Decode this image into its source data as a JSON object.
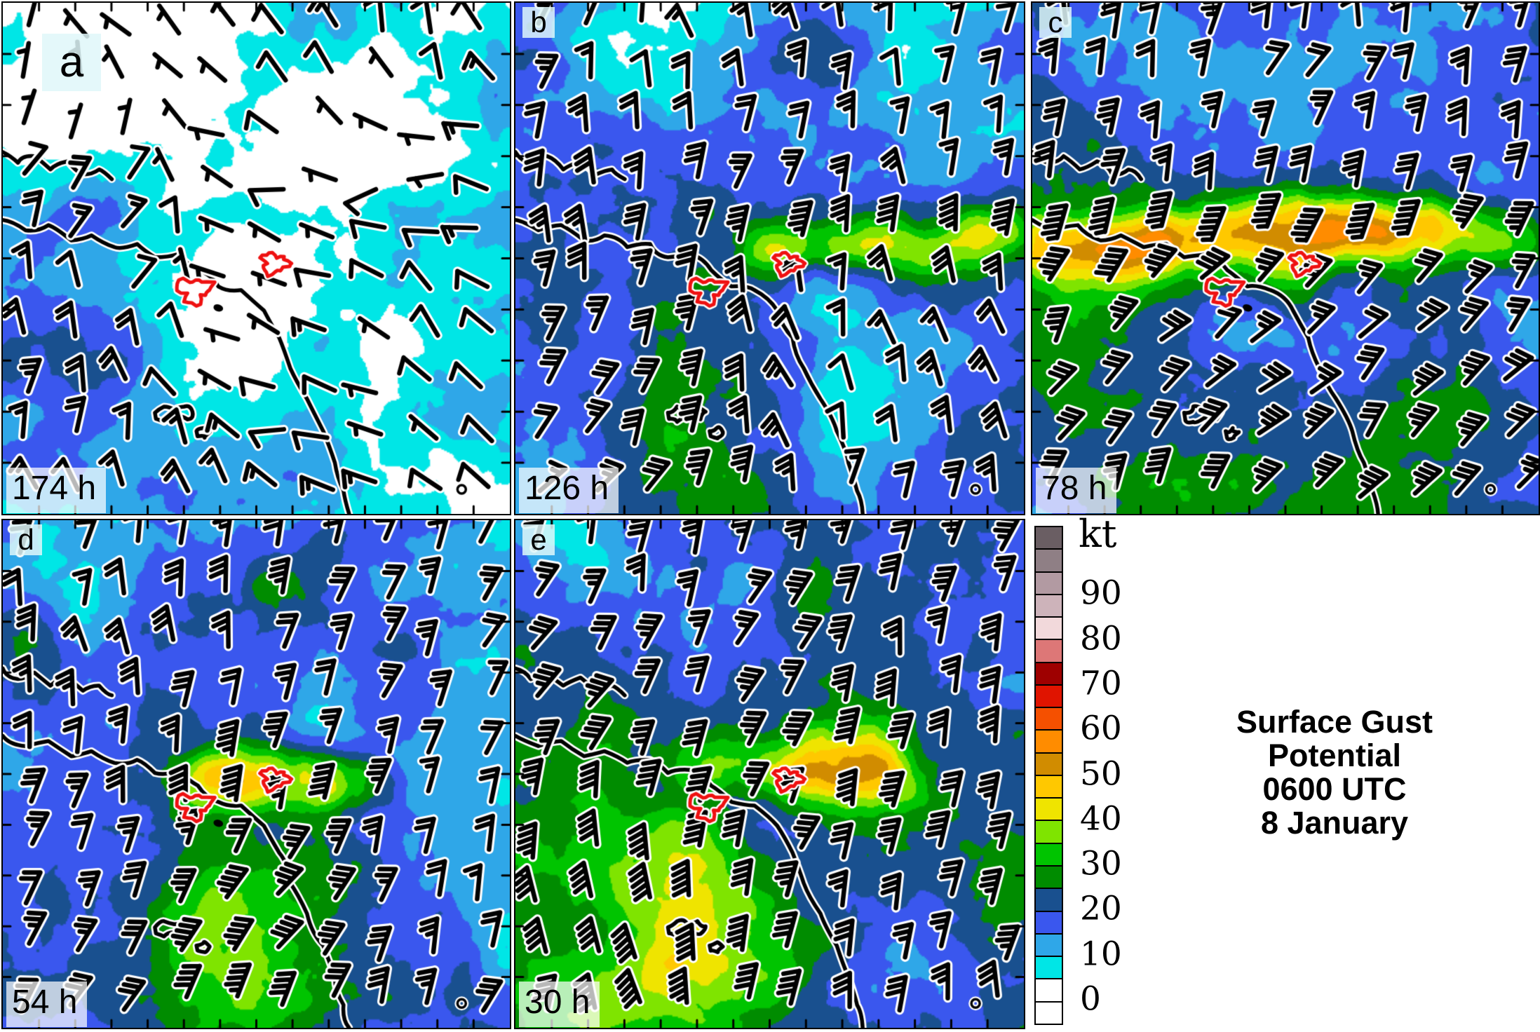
{
  "figure": {
    "background": "#FFFFFF"
  },
  "panels": [
    {
      "letter": "a",
      "lead_time": "174 h"
    },
    {
      "letter": "b",
      "lead_time": "126 h"
    },
    {
      "letter": "c",
      "lead_time": "78 h"
    },
    {
      "letter": "d",
      "lead_time": "54 h"
    },
    {
      "letter": "e",
      "lead_time": "30 h"
    }
  ],
  "legend": {
    "unit": "kt",
    "tick_labels": [
      "90",
      "80",
      "70",
      "60",
      "50",
      "40",
      "30",
      "20",
      "10",
      "0"
    ],
    "cell_colors_top_to_bottom": [
      "#6A5E63",
      "#8F7F85",
      "#B29AA2",
      "#CDB3BA",
      "#F2D9DB",
      "#DD7777",
      "#9E0000",
      "#E01400",
      "#F55000",
      "#FF8C00",
      "#D18C00",
      "#FFC800",
      "#EFE400",
      "#7FE400",
      "#00C400",
      "#008C00",
      "#19508F",
      "#3A57EE",
      "#2FA7E8",
      "#00E6E6",
      "#FFFFFF",
      "#FFFFFF"
    ],
    "title_lines": [
      "Surface Gust",
      "Potential",
      "0600 UTC",
      "8 January"
    ]
  },
  "map": {
    "palette_low_to_high": [
      "#FFFFFF",
      "#00E6E6",
      "#2FA7E8",
      "#3A57EE",
      "#19508F",
      "#008C00",
      "#00C400",
      "#7FE400",
      "#EFE400",
      "#FFC800",
      "#D18C00",
      "#FF8C00",
      "#F55000",
      "#E01400",
      "#9E0000"
    ],
    "coastline_color": "#000000",
    "fire_perimeter_color": "#EE1111",
    "wind_barb_color": "#000000",
    "wind_barb_outline": "#FFFFFF"
  }
}
